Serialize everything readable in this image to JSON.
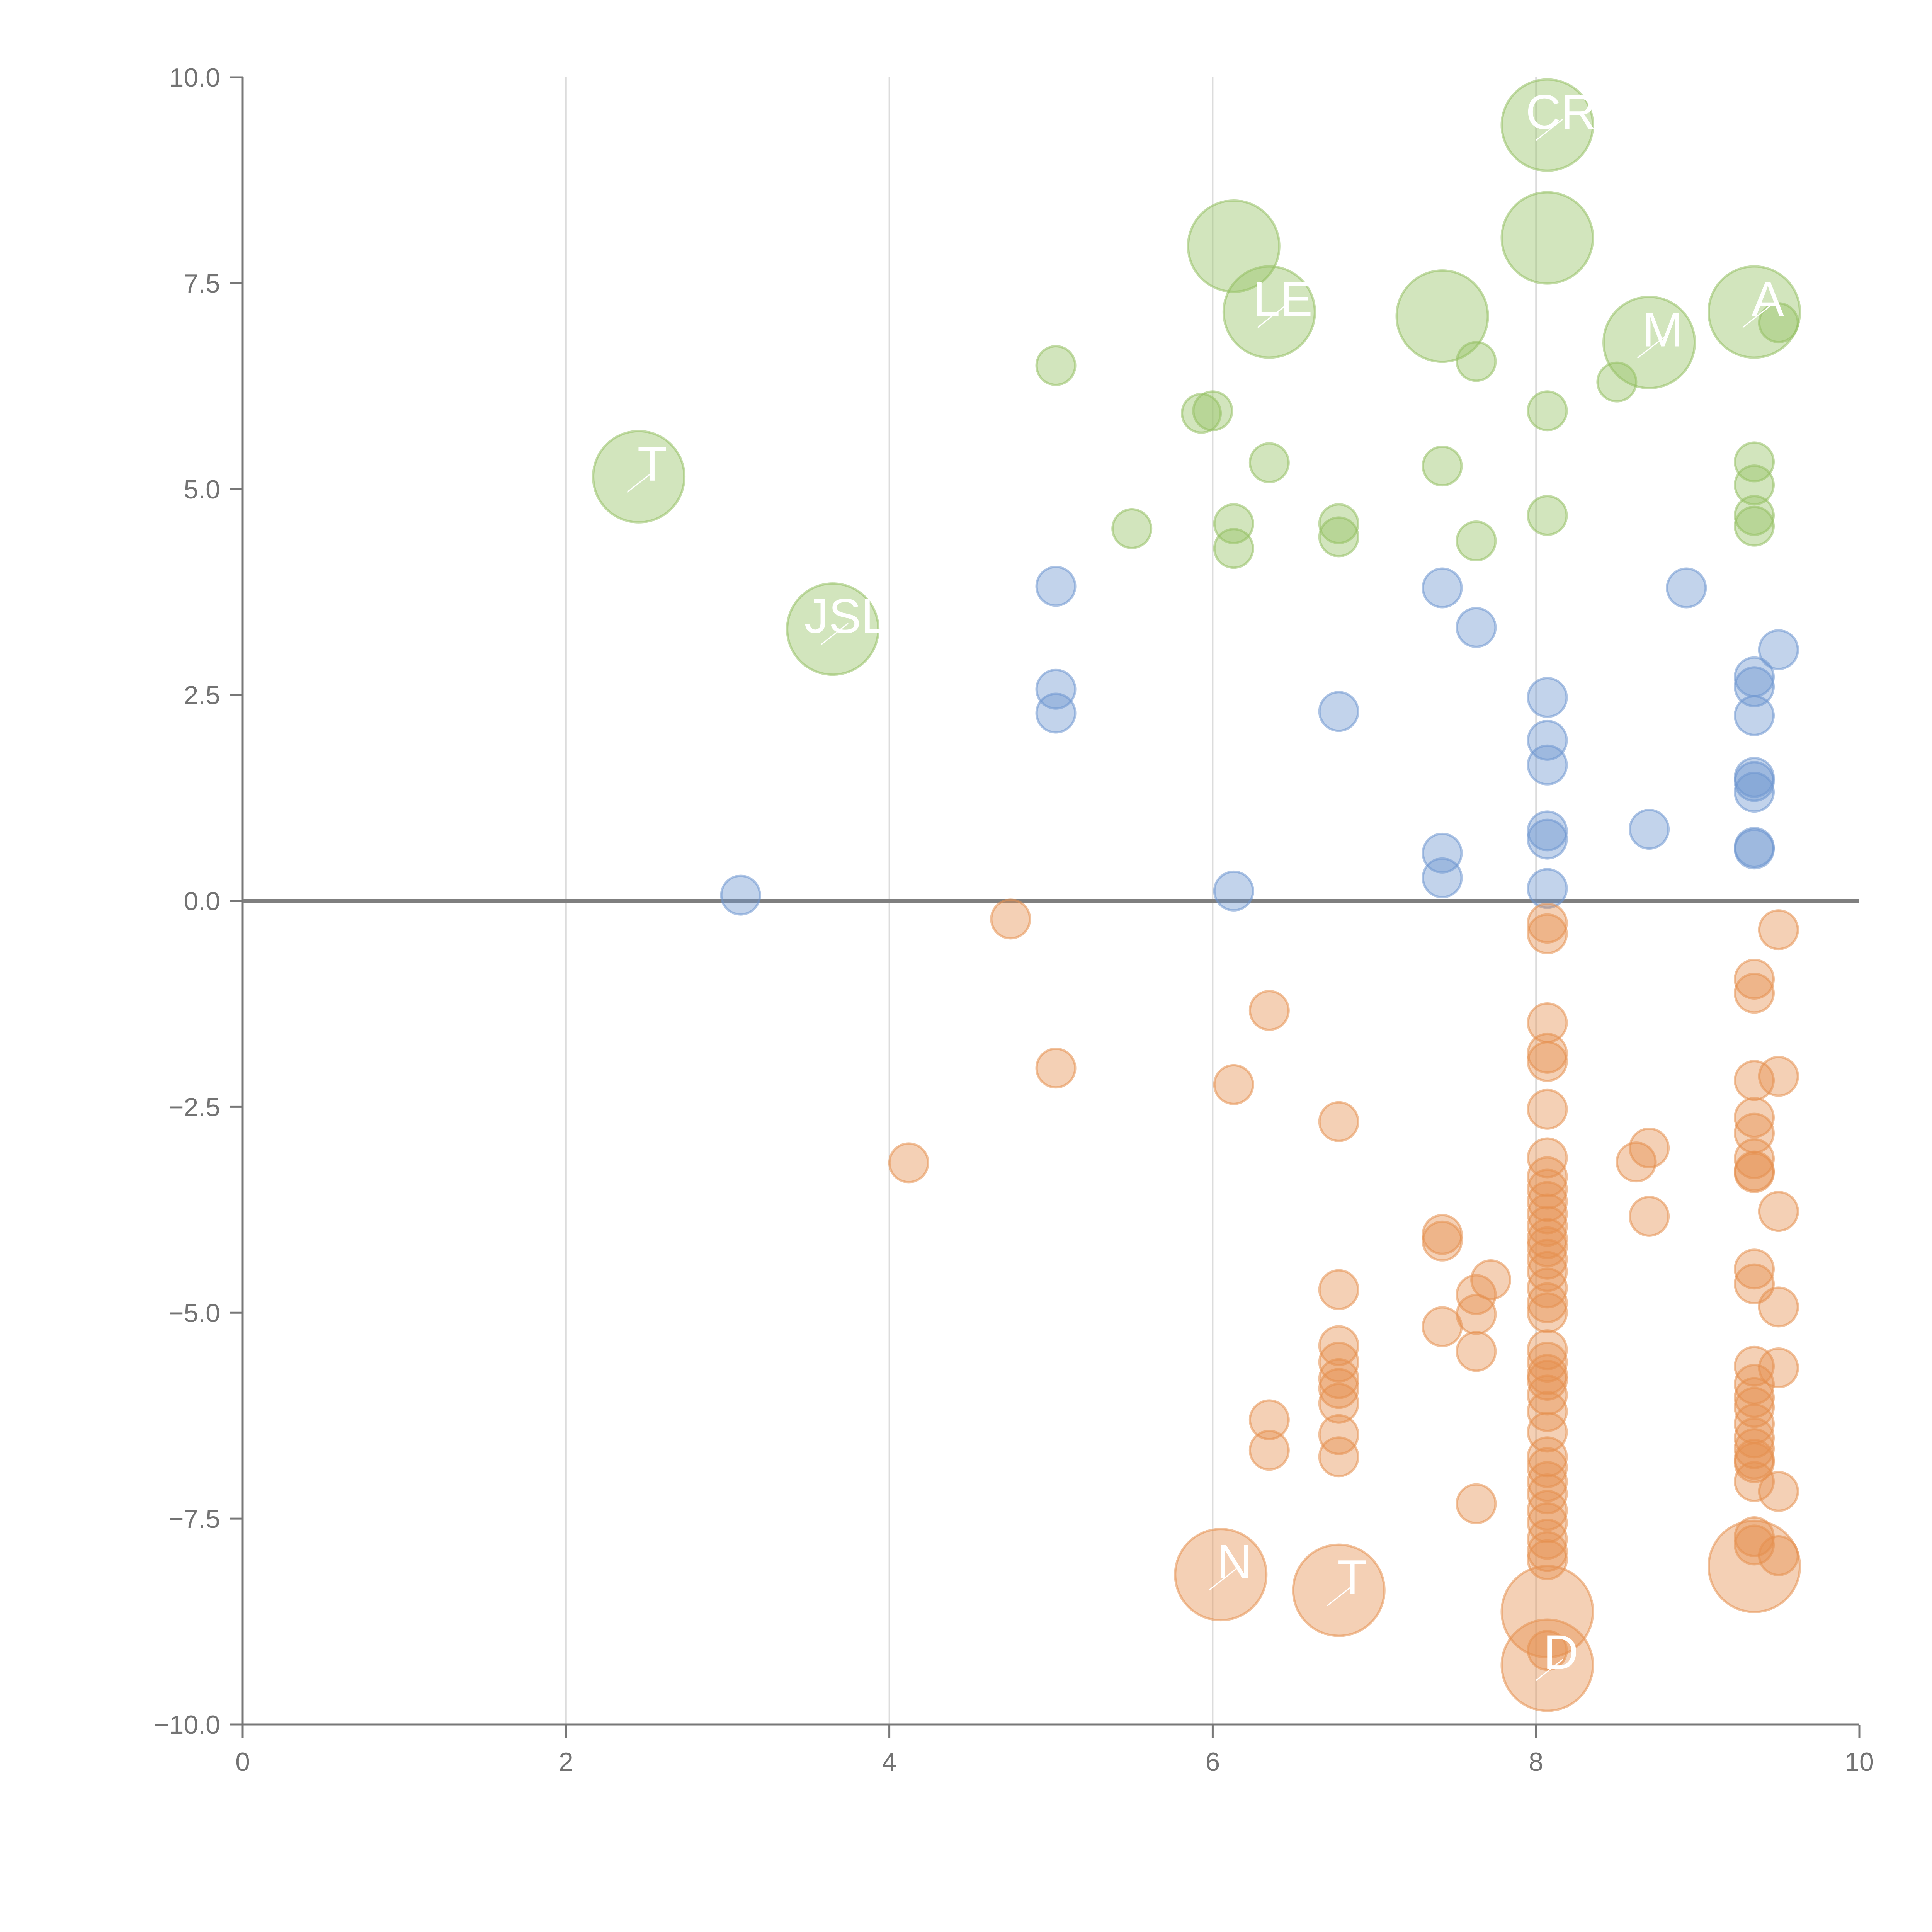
{
  "chart_data": {
    "type": "scatter",
    "title": "",
    "xlabel": "",
    "ylabel": "",
    "xlim": [
      0,
      10
    ],
    "ylim": [
      -10,
      10
    ],
    "grid": "vertical",
    "zero_line": true,
    "x_ticks": [
      {
        "value": 0,
        "label": "0"
      },
      {
        "value": 2,
        "label": "2"
      },
      {
        "value": 4,
        "label": "4"
      },
      {
        "value": 6,
        "label": "6"
      },
      {
        "value": 8,
        "label": "8"
      },
      {
        "value": 10,
        "label": "10"
      }
    ],
    "y_ticks": [
      {
        "value": 10,
        "label": "10.0"
      },
      {
        "value": 7.5,
        "label": "7.5"
      },
      {
        "value": 5,
        "label": "5.0"
      },
      {
        "value": 2.5,
        "label": "2.5"
      },
      {
        "value": 0,
        "label": "0.0"
      },
      {
        "value": -2.5,
        "label": "−2.5"
      },
      {
        "value": -5,
        "label": "−5.0"
      },
      {
        "value": -7.5,
        "label": "−7.5"
      },
      {
        "value": -10,
        "label": "−10.0"
      }
    ],
    "series": [
      {
        "name": "green",
        "color": "#93c062",
        "points": [
          {
            "x": 2.45,
            "y": 5.15,
            "size": "large",
            "label": "T"
          },
          {
            "x": 3.65,
            "y": 3.3,
            "size": "large",
            "label": "JSL"
          },
          {
            "x": 5.03,
            "y": 6.5
          },
          {
            "x": 5.5,
            "y": 4.52
          },
          {
            "x": 5.93,
            "y": 5.92
          },
          {
            "x": 6.0,
            "y": 5.95
          },
          {
            "x": 6.13,
            "y": 4.58
          },
          {
            "x": 6.13,
            "y": 4.28
          },
          {
            "x": 6.13,
            "y": 7.95,
            "size": "large"
          },
          {
            "x": 6.35,
            "y": 7.15,
            "size": "large",
            "label": "LE"
          },
          {
            "x": 6.35,
            "y": 5.32
          },
          {
            "x": 6.78,
            "y": 4.58
          },
          {
            "x": 6.78,
            "y": 4.42
          },
          {
            "x": 7.42,
            "y": 7.1,
            "size": "large"
          },
          {
            "x": 7.42,
            "y": 5.28
          },
          {
            "x": 7.63,
            "y": 6.55
          },
          {
            "x": 7.63,
            "y": 4.37
          },
          {
            "x": 8.07,
            "y": 9.42,
            "size": "large",
            "label": "CR"
          },
          {
            "x": 8.07,
            "y": 8.05,
            "size": "large"
          },
          {
            "x": 8.07,
            "y": 5.95
          },
          {
            "x": 8.07,
            "y": 4.68
          },
          {
            "x": 8.5,
            "y": 6.3
          },
          {
            "x": 8.7,
            "y": 6.78,
            "size": "large",
            "label": "M"
          },
          {
            "x": 9.35,
            "y": 7.15,
            "size": "large",
            "label": "A"
          },
          {
            "x": 9.35,
            "y": 5.33
          },
          {
            "x": 9.35,
            "y": 5.05
          },
          {
            "x": 9.35,
            "y": 4.68
          },
          {
            "x": 9.35,
            "y": 4.55
          },
          {
            "x": 9.5,
            "y": 7.02
          }
        ]
      },
      {
        "name": "blue",
        "color": "#6d96cf",
        "points": [
          {
            "x": 3.08,
            "y": 0.07
          },
          {
            "x": 5.03,
            "y": 3.82
          },
          {
            "x": 5.03,
            "y": 2.57
          },
          {
            "x": 5.03,
            "y": 2.28
          },
          {
            "x": 6.13,
            "y": 0.12
          },
          {
            "x": 6.78,
            "y": 2.3
          },
          {
            "x": 7.42,
            "y": 3.8
          },
          {
            "x": 7.42,
            "y": 0.58
          },
          {
            "x": 7.42,
            "y": 0.28
          },
          {
            "x": 7.63,
            "y": 3.32
          },
          {
            "x": 8.07,
            "y": 2.47
          },
          {
            "x": 8.07,
            "y": 1.95
          },
          {
            "x": 8.07,
            "y": 1.65
          },
          {
            "x": 8.07,
            "y": 0.85
          },
          {
            "x": 8.07,
            "y": 0.75
          },
          {
            "x": 8.07,
            "y": 0.15
          },
          {
            "x": 8.7,
            "y": 0.87
          },
          {
            "x": 8.93,
            "y": 3.8
          },
          {
            "x": 9.35,
            "y": 2.72
          },
          {
            "x": 9.35,
            "y": 2.6
          },
          {
            "x": 9.35,
            "y": 2.25
          },
          {
            "x": 9.35,
            "y": 1.5
          },
          {
            "x": 9.35,
            "y": 1.45
          },
          {
            "x": 9.35,
            "y": 1.32
          },
          {
            "x": 9.35,
            "y": 0.65
          },
          {
            "x": 9.35,
            "y": 0.63
          },
          {
            "x": 9.5,
            "y": 3.05
          }
        ]
      },
      {
        "name": "orange",
        "color": "#e58f4f",
        "points": [
          {
            "x": 4.12,
            "y": -3.18
          },
          {
            "x": 4.75,
            "y": -0.22
          },
          {
            "x": 5.03,
            "y": -2.03
          },
          {
            "x": 6.05,
            "y": -8.18,
            "size": "large",
            "label": "N"
          },
          {
            "x": 6.13,
            "y": -2.23
          },
          {
            "x": 6.35,
            "y": -1.33
          },
          {
            "x": 6.35,
            "y": -6.3
          },
          {
            "x": 6.35,
            "y": -6.67
          },
          {
            "x": 6.78,
            "y": -8.37,
            "size": "large",
            "label": "T"
          },
          {
            "x": 6.78,
            "y": -2.68
          },
          {
            "x": 6.78,
            "y": -4.72
          },
          {
            "x": 6.78,
            "y": -5.4
          },
          {
            "x": 6.78,
            "y": -5.6
          },
          {
            "x": 6.78,
            "y": -5.8
          },
          {
            "x": 6.78,
            "y": -5.92
          },
          {
            "x": 6.78,
            "y": -6.1
          },
          {
            "x": 6.78,
            "y": -6.48
          },
          {
            "x": 6.78,
            "y": -6.75
          },
          {
            "x": 7.42,
            "y": -4.05
          },
          {
            "x": 7.42,
            "y": -4.13
          },
          {
            "x": 7.42,
            "y": -5.17
          },
          {
            "x": 7.63,
            "y": -4.78
          },
          {
            "x": 7.63,
            "y": -5.02
          },
          {
            "x": 7.63,
            "y": -5.47
          },
          {
            "x": 7.63,
            "y": -7.32
          },
          {
            "x": 7.72,
            "y": -4.6
          },
          {
            "x": 8.07,
            "y": -8.63,
            "size": "large"
          },
          {
            "x": 8.07,
            "y": -9.28,
            "size": "large",
            "label": "D"
          },
          {
            "x": 8.07,
            "y": -0.27
          },
          {
            "x": 8.07,
            "y": -0.4
          },
          {
            "x": 8.07,
            "y": -1.48
          },
          {
            "x": 8.07,
            "y": -1.85
          },
          {
            "x": 8.07,
            "y": -1.95
          },
          {
            "x": 8.07,
            "y": -2.53
          },
          {
            "x": 8.07,
            "y": -3.12
          },
          {
            "x": 8.07,
            "y": -3.35
          },
          {
            "x": 8.07,
            "y": -3.5
          },
          {
            "x": 8.07,
            "y": -3.65
          },
          {
            "x": 8.07,
            "y": -3.8
          },
          {
            "x": 8.07,
            "y": -3.95
          },
          {
            "x": 8.07,
            "y": -4.1
          },
          {
            "x": 8.07,
            "y": -4.2
          },
          {
            "x": 8.07,
            "y": -4.35
          },
          {
            "x": 8.07,
            "y": -4.5
          },
          {
            "x": 8.07,
            "y": -4.7
          },
          {
            "x": 8.07,
            "y": -4.88
          },
          {
            "x": 8.07,
            "y": -5.0
          },
          {
            "x": 8.07,
            "y": -5.45
          },
          {
            "x": 8.07,
            "y": -5.6
          },
          {
            "x": 8.07,
            "y": -5.75
          },
          {
            "x": 8.07,
            "y": -5.82
          },
          {
            "x": 8.07,
            "y": -6.0
          },
          {
            "x": 8.07,
            "y": -6.2
          },
          {
            "x": 8.07,
            "y": -6.45
          },
          {
            "x": 8.07,
            "y": -6.75
          },
          {
            "x": 8.07,
            "y": -6.88
          },
          {
            "x": 8.07,
            "y": -7.05
          },
          {
            "x": 8.07,
            "y": -7.2
          },
          {
            "x": 8.07,
            "y": -7.4
          },
          {
            "x": 8.07,
            "y": -7.55
          },
          {
            "x": 8.07,
            "y": -7.75
          },
          {
            "x": 8.07,
            "y": -7.9
          },
          {
            "x": 8.07,
            "y": -8.0
          },
          {
            "x": 8.07,
            "y": -9.1
          },
          {
            "x": 8.62,
            "y": -3.17
          },
          {
            "x": 8.7,
            "y": -3.0
          },
          {
            "x": 8.7,
            "y": -3.83
          },
          {
            "x": 9.35,
            "y": -8.08,
            "size": "large"
          },
          {
            "x": 9.35,
            "y": -0.95
          },
          {
            "x": 9.35,
            "y": -1.12
          },
          {
            "x": 9.35,
            "y": -2.18
          },
          {
            "x": 9.35,
            "y": -2.63
          },
          {
            "x": 9.35,
            "y": -2.82
          },
          {
            "x": 9.35,
            "y": -3.13
          },
          {
            "x": 9.35,
            "y": -3.28
          },
          {
            "x": 9.35,
            "y": -3.3
          },
          {
            "x": 9.35,
            "y": -4.47
          },
          {
            "x": 9.35,
            "y": -4.65
          },
          {
            "x": 9.35,
            "y": -5.65
          },
          {
            "x": 9.35,
            "y": -5.87
          },
          {
            "x": 9.35,
            "y": -6.03
          },
          {
            "x": 9.35,
            "y": -6.15
          },
          {
            "x": 9.35,
            "y": -6.35
          },
          {
            "x": 9.35,
            "y": -6.52
          },
          {
            "x": 9.35,
            "y": -6.65
          },
          {
            "x": 9.35,
            "y": -6.78
          },
          {
            "x": 9.35,
            "y": -6.82
          },
          {
            "x": 9.35,
            "y": -7.05
          },
          {
            "x": 9.35,
            "y": -7.72
          },
          {
            "x": 9.35,
            "y": -7.82
          },
          {
            "x": 9.5,
            "y": -0.35
          },
          {
            "x": 9.5,
            "y": -2.13
          },
          {
            "x": 9.5,
            "y": -3.77
          },
          {
            "x": 9.5,
            "y": -4.93
          },
          {
            "x": 9.5,
            "y": -5.67
          },
          {
            "x": 9.5,
            "y": -7.17
          },
          {
            "x": 9.5,
            "y": -7.95
          }
        ]
      }
    ]
  }
}
